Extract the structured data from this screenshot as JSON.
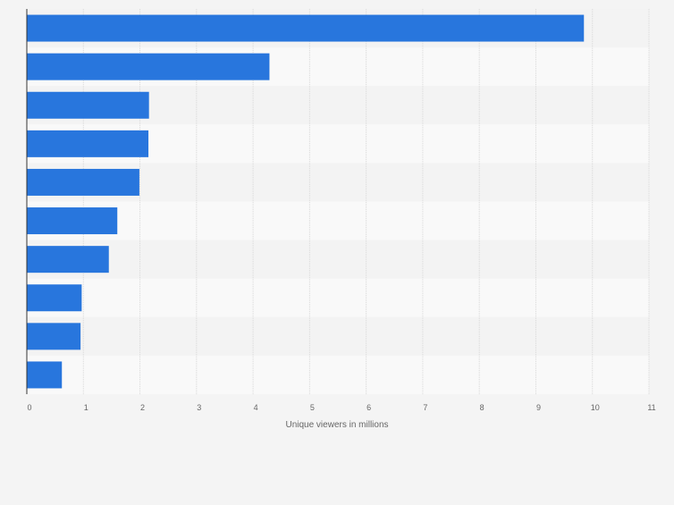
{
  "colors": {
    "background": "#f4f4f4",
    "band_light": "#f9f9f9",
    "band_dark": "#f3f3f3",
    "bar": "#2876dd",
    "grid": "#d8d8d8",
    "axis": "#333333",
    "text": "#666666"
  },
  "chart_data": {
    "type": "bar",
    "orientation": "horizontal",
    "title": "",
    "xlabel": "Unique viewers in millions",
    "ylabel": "",
    "xlim": [
      0,
      11
    ],
    "xticks": [
      "0",
      "1",
      "2",
      "3",
      "4",
      "5",
      "6",
      "7",
      "8",
      "9",
      "10",
      "11"
    ],
    "grid": true,
    "legend": "none",
    "categories": [
      "",
      "",
      "",
      "",
      "",
      "",
      "",
      "",
      "",
      ""
    ],
    "values": [
      9.85,
      4.29,
      2.16,
      2.15,
      1.99,
      1.6,
      1.45,
      0.97,
      0.95,
      0.62
    ]
  }
}
